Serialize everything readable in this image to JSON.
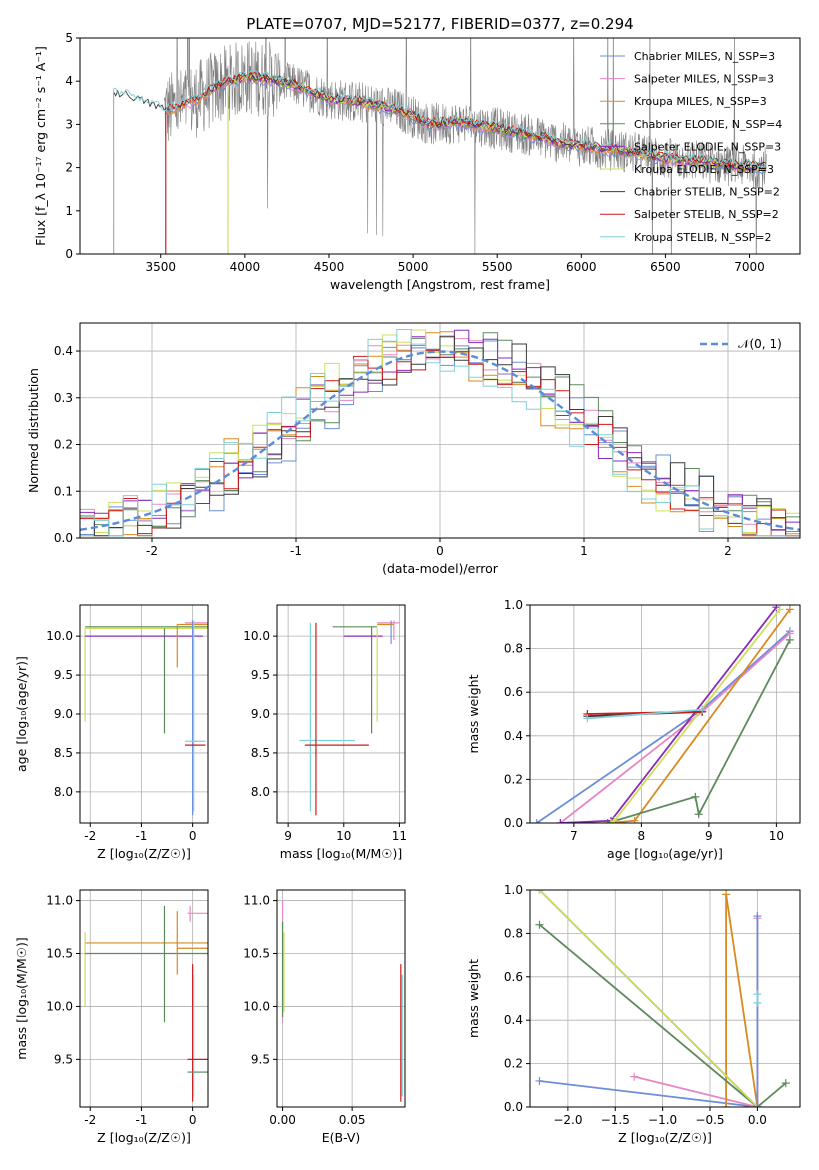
{
  "figure_title": "PLATE=0707, MJD=52177, FIBERID=0377, z=0.294",
  "colors": {
    "data": "#808080",
    "Chabrier MILES": "#6c8ed8",
    "Salpeter MILES": "#e887c4",
    "Kroupa MILES": "#d88a22",
    "Chabrier ELODIE": "#5d8a5d",
    "Salpeter ELODIE": "#8a2bb8",
    "Kroupa ELODIE": "#cde05a",
    "Chabrier STELIB": "#3a3a3a",
    "Salpeter STELIB": "#cc1a1a",
    "Kroupa STELIB": "#7fd0d8",
    "Normal": "#5b8bd9"
  },
  "chart_data": [
    {
      "id": "spectrum",
      "type": "line",
      "xlabel": "wavelength [Angstrom, rest frame]",
      "ylabel": "Flux [f_λ 10⁻¹⁷ erg cm⁻² s⁻¹ A⁻¹]",
      "xlim": [
        3020,
        7300
      ],
      "ylim": [
        0,
        5
      ],
      "xticks": [
        3500,
        4000,
        4500,
        5000,
        5500,
        6000,
        6500,
        7000
      ],
      "yticks": [
        0,
        1,
        2,
        3,
        4,
        5
      ],
      "legend_position": "top-right",
      "legend": [
        "Chabrier MILES, N_SSP=3",
        "Salpeter MILES, N_SSP=3",
        "Kroupa MILES, N_SSP=3",
        "Chabrier ELODIE, N_SSP=4",
        "Salpeter ELODIE, N_SSP=3",
        "Kroupa ELODIE, N_SSP=3",
        "Chabrier STELIB, N_SSP=2",
        "Salpeter STELIB, N_SSP=2",
        "Kroupa STELIB, N_SSP=2"
      ],
      "model_trend": {
        "x": [
          3220,
          3300,
          3400,
          3530,
          3700,
          3850,
          4000,
          4150,
          4300,
          4500,
          4700,
          4900,
          5100,
          5300,
          5500,
          5700,
          5900,
          6100,
          6300,
          6500,
          6700,
          6900,
          7100
        ],
        "y": [
          3.7,
          3.65,
          3.5,
          3.3,
          3.55,
          3.9,
          4.1,
          4.05,
          3.9,
          3.6,
          3.5,
          3.35,
          3.0,
          3.05,
          2.9,
          2.75,
          2.55,
          2.45,
          2.35,
          2.2,
          2.15,
          2.05,
          2.0
        ]
      },
      "model_starts": {
        "Chabrier MILES": 3530,
        "Salpeter MILES": 3530,
        "Kroupa MILES": 3530,
        "Chabrier ELODIE": 3900,
        "Salpeter ELODIE": 3900,
        "Kroupa ELODIE": 3900,
        "Chabrier STELIB": 3220,
        "Salpeter STELIB": 3530,
        "Kroupa STELIB": 3220
      },
      "data_noise_amplitude": 0.9
    },
    {
      "id": "residuals",
      "type": "line",
      "xlabel": "(data-model)/error",
      "ylabel": "Normed distribution",
      "xlim": [
        -2.5,
        2.5
      ],
      "ylim": [
        0,
        0.46
      ],
      "xticks": [
        -2,
        -1,
        0,
        1,
        2
      ],
      "yticks": [
        0.0,
        0.1,
        0.2,
        0.3,
        0.4
      ],
      "legend_position": "top-right",
      "legend": [
        "𝒩(0, 1)"
      ],
      "bin_width": 0.1
    },
    {
      "id": "age_vs_Z",
      "type": "scatter",
      "xlabel": "Z [log₁₀(Z/Z☉)]",
      "ylabel": "age  [log₁₀(age/yr)]",
      "xlim": [
        -2.2,
        0.3
      ],
      "ylim": [
        7.6,
        10.4
      ],
      "xticks": [
        -2,
        -1,
        0
      ],
      "yticks": [
        8.0,
        8.5,
        9.0,
        9.5,
        10.0
      ]
    },
    {
      "id": "age_vs_mass",
      "type": "scatter",
      "xlabel": "mass [log₁₀(M/M☉)]",
      "ylabel": "",
      "xlim": [
        8.8,
        11.1
      ],
      "ylim": [
        7.6,
        10.4
      ],
      "xticks": [
        9,
        10,
        11
      ],
      "yticks": [
        8.0,
        8.5,
        9.0,
        9.5,
        10.0
      ]
    },
    {
      "id": "weight_vs_age",
      "type": "line",
      "xlabel": "age  [log₁₀(age/yr)]",
      "ylabel": "mass weight",
      "xlim": [
        6.35,
        10.35
      ],
      "ylim": [
        0,
        1
      ],
      "xticks": [
        7,
        8,
        9,
        10
      ],
      "yticks": [
        0.0,
        0.2,
        0.4,
        0.6,
        0.8,
        1.0
      ],
      "series": [
        {
          "name": "Chabrier MILES",
          "x": [
            6.45,
            8.9,
            10.2
          ],
          "y": [
            0.0,
            0.52,
            0.88
          ]
        },
        {
          "name": "Salpeter MILES",
          "x": [
            6.8,
            8.9,
            10.2
          ],
          "y": [
            0.0,
            0.51,
            0.87
          ]
        },
        {
          "name": "Kroupa MILES",
          "x": [
            7.5,
            7.9,
            10.2
          ],
          "y": [
            0.0,
            0.01,
            0.98
          ]
        },
        {
          "name": "Chabrier ELODIE",
          "x": [
            7.5,
            8.8,
            8.85,
            10.2
          ],
          "y": [
            0.0,
            0.12,
            0.04,
            0.84
          ]
        },
        {
          "name": "Salpeter ELODIE",
          "x": [
            6.8,
            7.55,
            10.0
          ],
          "y": [
            0.0,
            0.01,
            0.99
          ]
        },
        {
          "name": "Kroupa ELODIE",
          "x": [
            7.55,
            7.6,
            10.05
          ],
          "y": [
            0.0,
            0.01,
            0.98
          ]
        },
        {
          "name": "Chabrier STELIB",
          "x": [
            7.2,
            8.9
          ],
          "y": [
            0.49,
            0.51
          ]
        },
        {
          "name": "Salpeter STELIB",
          "x": [
            7.2,
            8.9
          ],
          "y": [
            0.5,
            0.51
          ]
        },
        {
          "name": "Kroupa STELIB",
          "x": [
            7.2,
            8.9
          ],
          "y": [
            0.48,
            0.52
          ]
        }
      ]
    },
    {
      "id": "mass_vs_Z",
      "type": "scatter",
      "xlabel": "Z [log₁₀(Z/Z☉)]",
      "ylabel": "mass [log₁₀(M/M☉)]",
      "xlim": [
        -2.2,
        0.3
      ],
      "ylim": [
        9.05,
        11.1
      ],
      "xticks": [
        -2,
        -1,
        0
      ],
      "yticks": [
        9.5,
        10.0,
        10.5,
        11.0
      ]
    },
    {
      "id": "mass_vs_ebv",
      "type": "scatter",
      "xlabel": "E(B-V)",
      "ylabel": "",
      "xlim": [
        -0.004,
        0.088
      ],
      "ylim": [
        9.05,
        11.1
      ],
      "xticks": [
        0.0,
        0.05
      ],
      "yticks": [
        9.5,
        10.0,
        10.5,
        11.0
      ]
    },
    {
      "id": "weight_vs_Z",
      "type": "line",
      "xlabel": "Z [log₁₀(Z/Z☉)]",
      "ylabel": "mass weight",
      "xlim": [
        -2.4,
        0.45
      ],
      "ylim": [
        0,
        1
      ],
      "xticks": [
        -2.0,
        -1.5,
        -1.0,
        -0.5,
        0.0
      ],
      "yticks": [
        0.0,
        0.2,
        0.4,
        0.6,
        0.8,
        1.0
      ],
      "series": [
        {
          "name": "Chabrier MILES",
          "x": [
            -2.3,
            0.0
          ],
          "y": [
            0.12,
            0.0
          ]
        },
        {
          "name": "Salpeter MILES",
          "x": [
            -1.3,
            0.0
          ],
          "y": [
            0.14,
            0.0
          ]
        },
        {
          "name": "Kroupa MILES",
          "x": [
            -0.33,
            -0.33,
            0.0
          ],
          "y": [
            0.0,
            0.98,
            0.0
          ]
        },
        {
          "name": "Chabrier ELODIE",
          "x": [
            -2.3,
            0.0,
            0.3
          ],
          "y": [
            0.84,
            0.0,
            0.11
          ]
        },
        {
          "name": "Salpeter ELODIE",
          "x": [
            -2.3,
            0.0
          ],
          "y": [
            1.0,
            0.0
          ]
        },
        {
          "name": "Kroupa ELODIE",
          "x": [
            -2.3,
            0.0
          ],
          "y": [
            1.0,
            0.0
          ]
        },
        {
          "name": "Kroupa MILES top",
          "x": [
            0.0,
            0.0
          ],
          "y": [
            0.0,
            0.87
          ]
        },
        {
          "name": "Chabrier MILES top",
          "x": [
            0.0,
            0.0
          ],
          "y": [
            0.0,
            0.88
          ]
        },
        {
          "name": "STELIB",
          "x": [
            0.0,
            0.0
          ],
          "y": [
            0.48,
            0.52
          ]
        }
      ]
    }
  ]
}
